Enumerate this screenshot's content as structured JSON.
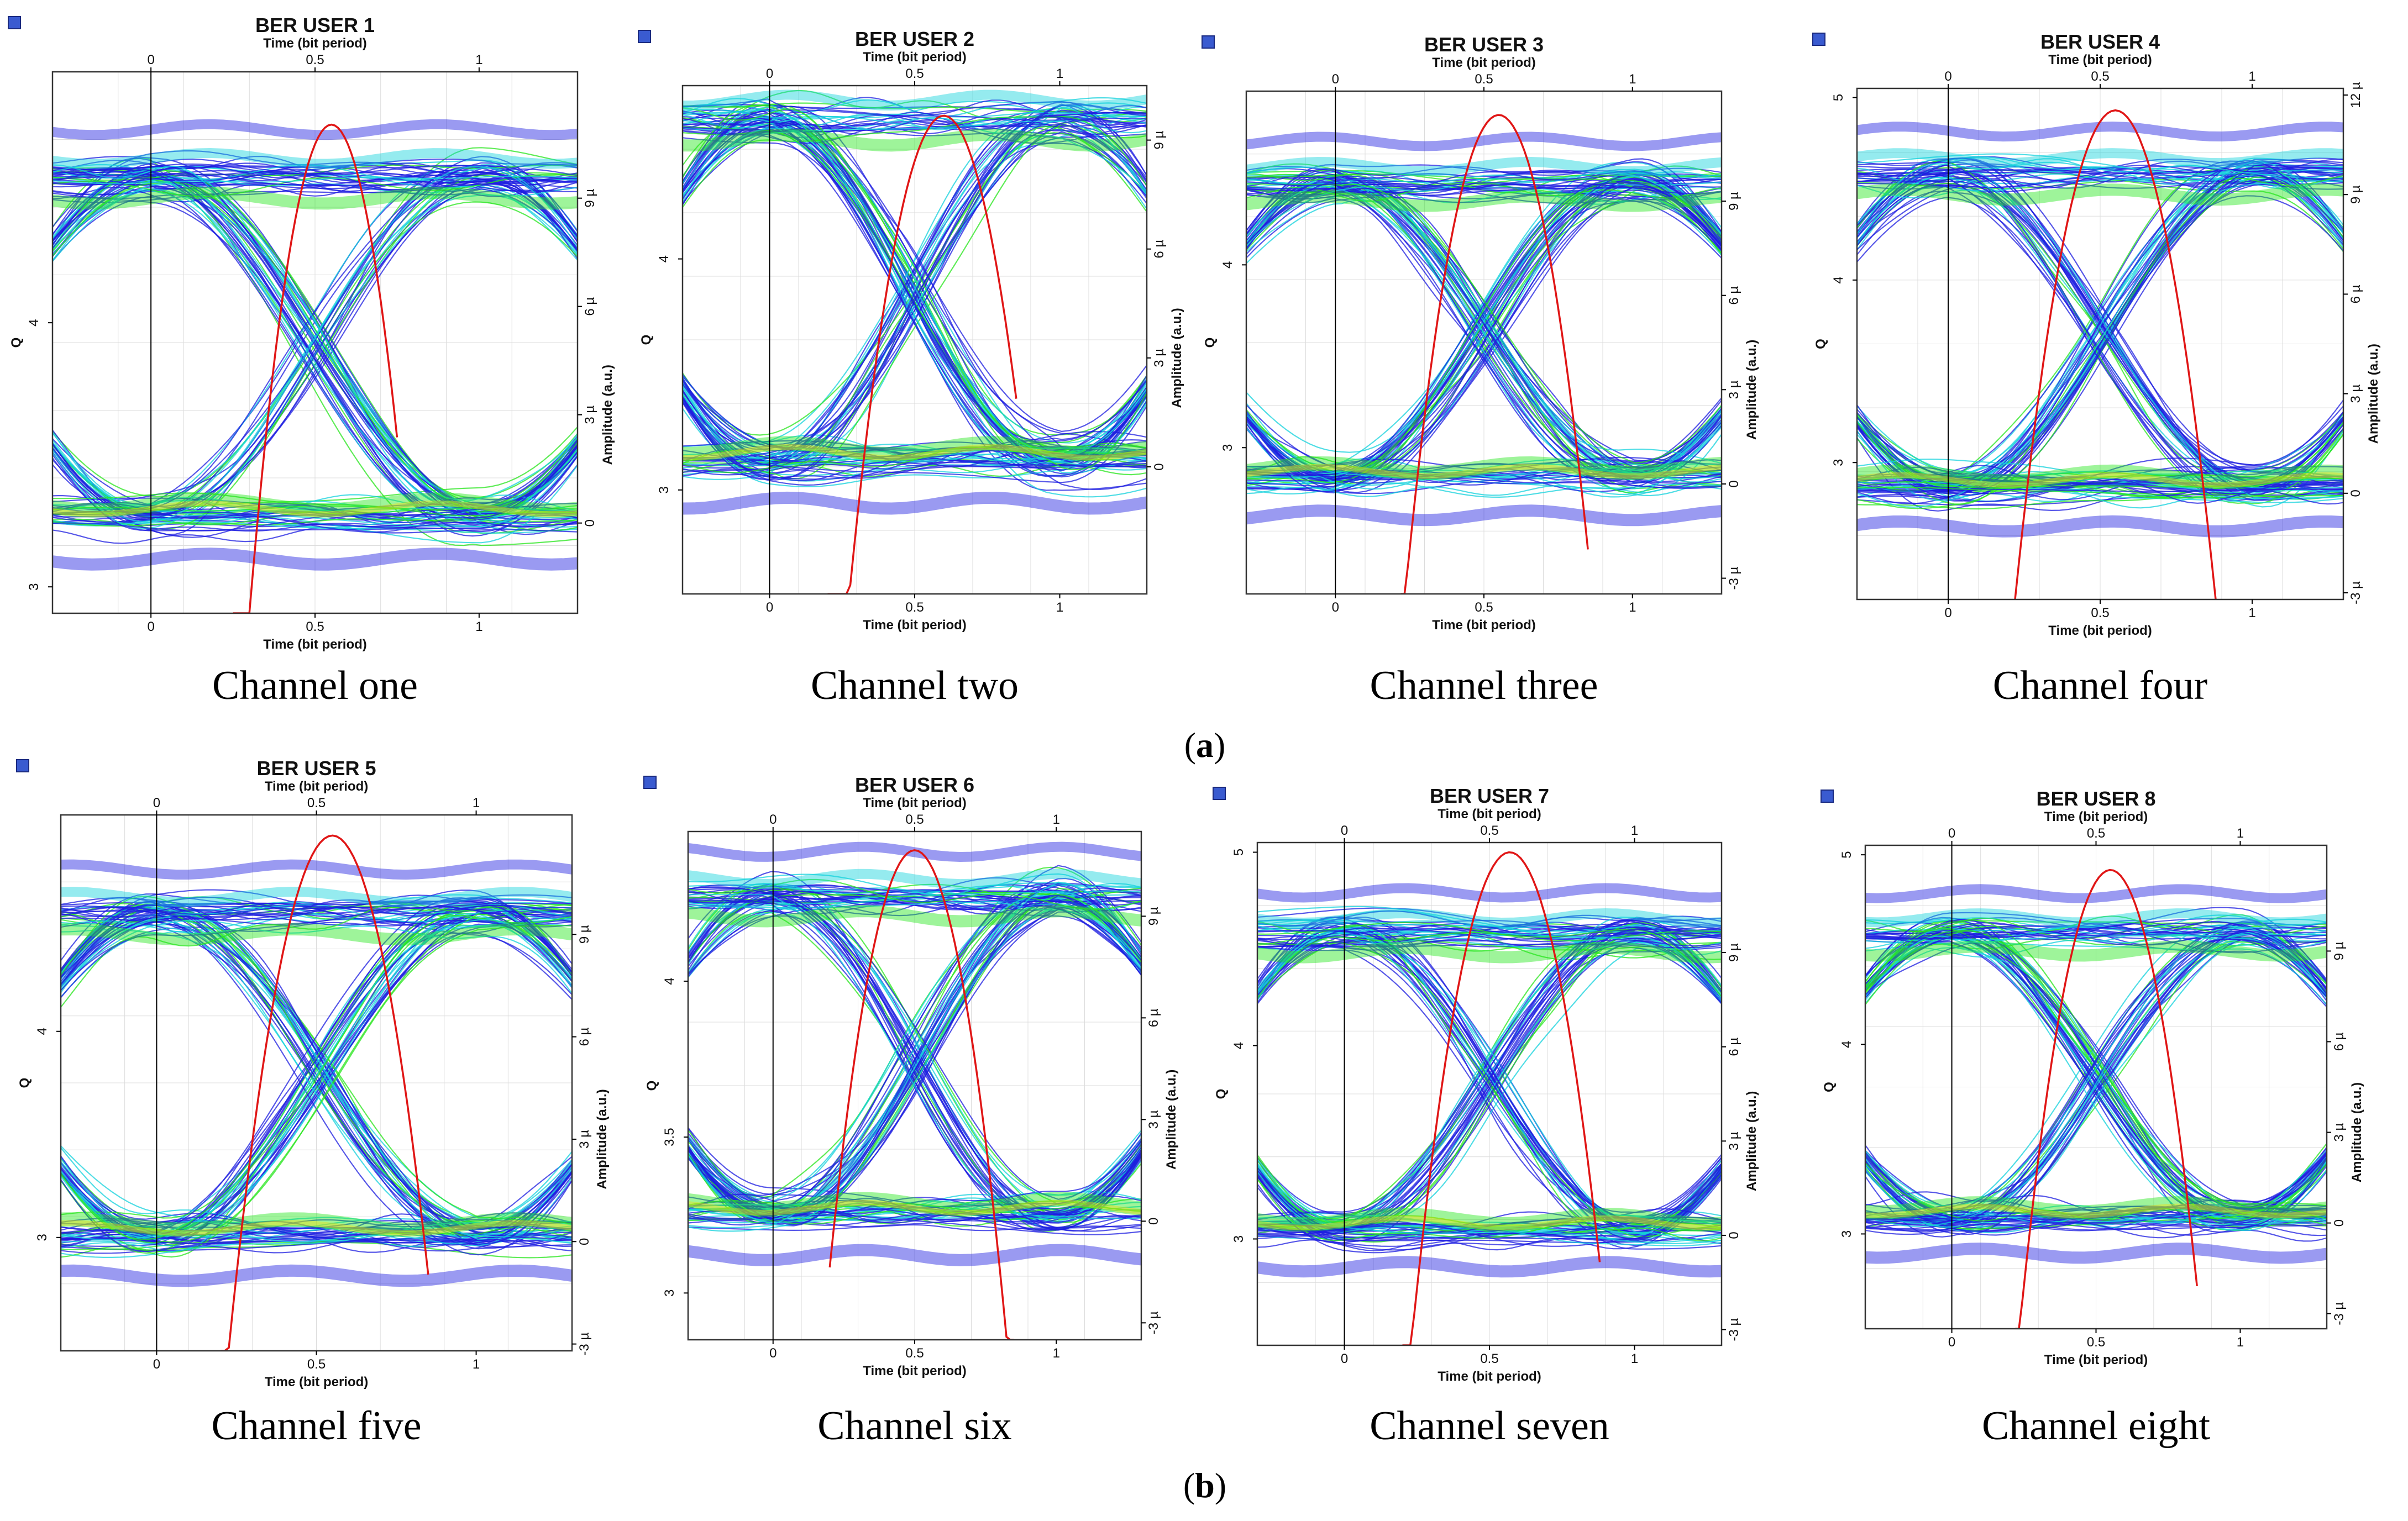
{
  "figure": {
    "captions": {
      "a": "a",
      "b": "b"
    },
    "colors": {
      "trace_low": "#1e1ee0",
      "trace_mid": "#14d2dc",
      "trace_high": "#28e61e",
      "trace_peak": "#f0dc14",
      "q_curve": "#e01616",
      "frame": "#333333",
      "grid": "#dcdcdc"
    }
  },
  "chart_data": [
    {
      "type": "line",
      "title": "BER USER 1",
      "channel_label": "Channel one",
      "xlabel": "Time (bit period)",
      "ylabel": "Q",
      "y2label": "Amplitude (a.u.)",
      "x_ticks": [
        "0",
        "0.5",
        "1"
      ],
      "x_tick_values": [
        0,
        0.5,
        1
      ],
      "xlim": [
        -0.3,
        1.3
      ],
      "q_ticks": [
        "3",
        "4"
      ],
      "q_tick_values": [
        3,
        4
      ],
      "q_lim": [
        2.9,
        4.95
      ],
      "amp_ticks": [
        "0",
        "3 µ",
        "6 µ",
        "9 µ"
      ],
      "amp_tick_values": [
        0,
        3,
        6,
        9
      ],
      "amp_lim": [
        -2.5,
        12.5
      ],
      "q_curve": {
        "peak_t": 0.55,
        "peak_q": 4.75,
        "t_range": [
          0.25,
          0.75
        ]
      }
    },
    {
      "type": "line",
      "title": "BER USER 2",
      "channel_label": "Channel two",
      "xlabel": "Time (bit period)",
      "ylabel": "Q",
      "y2label": "Amplitude (a.u.)",
      "x_ticks": [
        "0",
        "0.5",
        "1"
      ],
      "x_tick_values": [
        0,
        0.5,
        1
      ],
      "xlim": [
        -0.3,
        1.3
      ],
      "q_ticks": [
        "3",
        "4"
      ],
      "q_tick_values": [
        3,
        4
      ],
      "q_lim": [
        2.55,
        4.75
      ],
      "amp_ticks": [
        "0",
        "3 µ",
        "6 µ",
        "9 µ"
      ],
      "amp_tick_values": [
        0,
        3,
        6,
        9
      ],
      "amp_lim": [
        -3.5,
        10.5
      ],
      "q_curve": {
        "peak_t": 0.6,
        "peak_q": 4.62,
        "t_range": [
          0.2,
          0.85
        ]
      }
    },
    {
      "type": "line",
      "title": "BER USER 3",
      "channel_label": "Channel three",
      "xlabel": "Time (bit period)",
      "ylabel": "Q",
      "y2label": "Amplitude (a.u.)",
      "x_ticks": [
        "0",
        "0.5",
        "1"
      ],
      "x_tick_values": [
        0,
        0.5,
        1
      ],
      "xlim": [
        -0.3,
        1.3
      ],
      "q_ticks": [
        "3",
        "4"
      ],
      "q_tick_values": [
        3,
        4
      ],
      "q_lim": [
        2.2,
        4.95
      ],
      "amp_ticks": [
        "-3 µ",
        "0",
        "3 µ",
        "6 µ",
        "9 µ"
      ],
      "amp_tick_values": [
        -3,
        0,
        3,
        6,
        9
      ],
      "amp_lim": [
        -3.5,
        12.5
      ],
      "q_curve": {
        "peak_t": 0.55,
        "peak_q": 4.82,
        "t_range": [
          0.22,
          0.85
        ]
      }
    },
    {
      "type": "line",
      "title": "BER USER 4",
      "channel_label": "Channel four",
      "xlabel": "Time (bit period)",
      "ylabel": "Q",
      "y2label": "Amplitude (a.u.)",
      "x_ticks": [
        "0",
        "0.5",
        "1"
      ],
      "x_tick_values": [
        0,
        0.5,
        1
      ],
      "xlim": [
        -0.3,
        1.3
      ],
      "q_ticks": [
        "3",
        "4",
        "5"
      ],
      "q_tick_values": [
        3,
        4,
        5
      ],
      "q_lim": [
        2.25,
        5.05
      ],
      "amp_ticks": [
        "-3 µ",
        "0",
        "3 µ",
        "6 µ",
        "9 µ",
        "12 µ"
      ],
      "amp_tick_values": [
        -3,
        0,
        3,
        6,
        9,
        12
      ],
      "amp_lim": [
        -3.2,
        12.2
      ],
      "q_curve": {
        "peak_t": 0.55,
        "peak_q": 4.93,
        "t_range": [
          0.22,
          0.88
        ]
      }
    },
    {
      "type": "line",
      "title": "BER USER 5",
      "channel_label": "Channel five",
      "xlabel": "Time (bit period)",
      "ylabel": "Q",
      "y2label": "Amplitude (a.u.)",
      "x_ticks": [
        "0",
        "0.5",
        "1"
      ],
      "x_tick_values": [
        0,
        0.5,
        1
      ],
      "xlim": [
        -0.3,
        1.3
      ],
      "q_ticks": [
        "3",
        "4"
      ],
      "q_tick_values": [
        3,
        4
      ],
      "q_lim": [
        2.45,
        5.05
      ],
      "amp_ticks": [
        "-3 µ",
        "0",
        "3 µ",
        "6 µ",
        "9 µ"
      ],
      "amp_tick_values": [
        -3,
        0,
        3,
        6,
        9
      ],
      "amp_lim": [
        -3.2,
        12.5
      ],
      "q_curve": {
        "peak_t": 0.55,
        "peak_q": 4.95,
        "t_range": [
          0.2,
          0.85
        ]
      }
    },
    {
      "type": "line",
      "title": "BER USER 6",
      "channel_label": "Channel six",
      "xlabel": "Time (bit period)",
      "ylabel": "Q",
      "y2label": "Amplitude (a.u.)",
      "x_ticks": [
        "0",
        "0.5",
        "1"
      ],
      "x_tick_values": [
        0,
        0.5,
        1
      ],
      "xlim": [
        -0.3,
        1.3
      ],
      "q_ticks": [
        "3",
        "3.5",
        "4"
      ],
      "q_tick_values": [
        3,
        3.5,
        4
      ],
      "q_lim": [
        2.85,
        4.48
      ],
      "amp_ticks": [
        "-3 µ",
        "0",
        "3 µ",
        "6 µ",
        "9 µ"
      ],
      "amp_tick_values": [
        -3,
        0,
        3,
        6,
        9
      ],
      "amp_lim": [
        -3.5,
        11.5
      ],
      "q_curve": {
        "peak_t": 0.5,
        "peak_q": 4.42,
        "t_range": [
          0.2,
          0.85
        ]
      }
    },
    {
      "type": "line",
      "title": "BER USER 7",
      "channel_label": "Channel seven",
      "xlabel": "Time (bit period)",
      "ylabel": "Q",
      "y2label": "Amplitude (a.u.)",
      "x_ticks": [
        "0",
        "0.5",
        "1"
      ],
      "x_tick_values": [
        0,
        0.5,
        1
      ],
      "xlim": [
        -0.3,
        1.3
      ],
      "q_ticks": [
        "3",
        "4",
        "5"
      ],
      "q_tick_values": [
        3,
        4,
        5
      ],
      "q_lim": [
        2.45,
        5.05
      ],
      "amp_ticks": [
        "-3 µ",
        "0",
        "3 µ",
        "6 µ",
        "9 µ"
      ],
      "amp_tick_values": [
        -3,
        0,
        3,
        6,
        9
      ],
      "amp_lim": [
        -3.5,
        12.5
      ],
      "q_curve": {
        "peak_t": 0.57,
        "peak_q": 5.0,
        "t_range": [
          0.2,
          0.88
        ]
      }
    },
    {
      "type": "line",
      "title": "BER USER 8",
      "channel_label": "Channel eight",
      "xlabel": "Time (bit period)",
      "ylabel": "Q",
      "y2label": "Amplitude (a.u.)",
      "x_ticks": [
        "0",
        "0.5",
        "1"
      ],
      "x_tick_values": [
        0,
        0.5,
        1
      ],
      "xlim": [
        -0.3,
        1.3
      ],
      "q_ticks": [
        "3",
        "4",
        "5"
      ],
      "q_tick_values": [
        3,
        4,
        5
      ],
      "q_lim": [
        2.5,
        5.05
      ],
      "amp_ticks": [
        "-3 µ",
        "0",
        "3 µ",
        "6 µ",
        "9 µ"
      ],
      "amp_tick_values": [
        -3,
        0,
        3,
        6,
        9
      ],
      "amp_lim": [
        -3.5,
        12.5
      ],
      "q_curve": {
        "peak_t": 0.55,
        "peak_q": 4.92,
        "t_range": [
          0.22,
          0.85
        ]
      }
    }
  ]
}
